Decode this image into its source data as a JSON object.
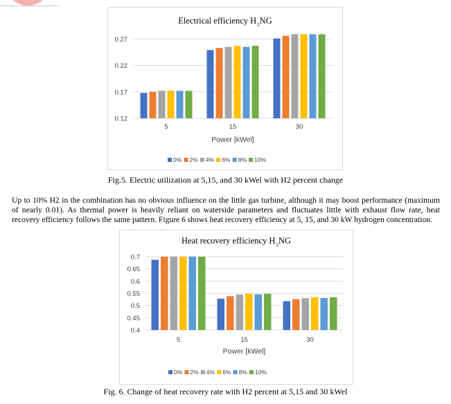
{
  "caption1": "Fig.5. Electric utilization at 5,15, and 30 kWel with H2 percent change",
  "paragraph": "Up to 10% H2 in the combination has no obvious influence on the little gas turbine, although it may boost performance (maximum of nearly 0.01). As thermal power is heavily reliant on waterside parameters and fluctuates little with exhaust flow rate, heat recovery efficiency follows the same pattern. Figure 6 shows heat recovery efficiency at 5, 15, and 30 kW hydrogen concentration.",
  "caption2": "Fig. 6. Change of heat recovery rate with H2 percent at 5,15 and 30 kWel",
  "colors": [
    "#4472c4",
    "#ed7d31",
    "#a5a5a5",
    "#ffc000",
    "#5b9bd5",
    "#70ad47"
  ],
  "chart_data": [
    {
      "type": "bar",
      "title": "Electrical efficiency H",
      "title_sub": "2",
      "title_suffix": "NG",
      "xlabel": "Power [kWel]",
      "ylabel": "",
      "categories": [
        "5",
        "15",
        "30"
      ],
      "ylim": [
        0.12,
        0.29
      ],
      "yticks": [
        "0.27",
        "0.22",
        "0.17",
        "0.12"
      ],
      "ytick_values": [
        0.27,
        0.22,
        0.17,
        0.12
      ],
      "grid": true,
      "legend": "bottom",
      "series": [
        {
          "name": "0%",
          "values": [
            0.168,
            0.249,
            0.271
          ]
        },
        {
          "name": "2%",
          "values": [
            0.17,
            0.253,
            0.276
          ]
        },
        {
          "name": "4%",
          "values": [
            0.172,
            0.255,
            0.279
          ]
        },
        {
          "name": "6%",
          "values": [
            0.172,
            0.257,
            0.279
          ]
        },
        {
          "name": "8%",
          "values": [
            0.172,
            0.255,
            0.279
          ]
        },
        {
          "name": "10%",
          "values": [
            0.172,
            0.257,
            0.279
          ]
        }
      ]
    },
    {
      "type": "bar",
      "title": "Heat recovery efficiency H",
      "title_sub": "2",
      "title_suffix": "NG",
      "xlabel": "Power [kWel]",
      "ylabel": "",
      "categories": [
        "5",
        "15",
        "30"
      ],
      "ylim": [
        0.4,
        0.7
      ],
      "yticks": [
        "0.7",
        "0.65",
        "0.6",
        "0.55",
        "0.5",
        "0.45",
        "0.4"
      ],
      "ytick_values": [
        0.7,
        0.65,
        0.6,
        0.55,
        0.5,
        0.45,
        0.4
      ],
      "grid": true,
      "legend": "bottom",
      "series": [
        {
          "name": "0%",
          "values": [
            0.687,
            0.528,
            0.518
          ]
        },
        {
          "name": "2%",
          "values": [
            0.7,
            0.538,
            0.526
          ]
        },
        {
          "name": "4%",
          "values": [
            0.7,
            0.545,
            0.53
          ]
        },
        {
          "name": "6%",
          "values": [
            0.7,
            0.548,
            0.534
          ]
        },
        {
          "name": "8%",
          "values": [
            0.7,
            0.546,
            0.531
          ]
        },
        {
          "name": "10%",
          "values": [
            0.7,
            0.548,
            0.534
          ]
        }
      ]
    }
  ]
}
